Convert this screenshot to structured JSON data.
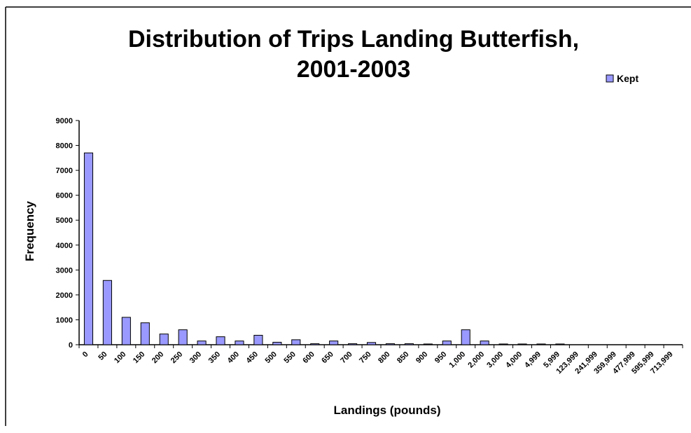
{
  "chart_data": {
    "type": "bar",
    "title_line1": "Distribution of Trips Landing Butterfish,",
    "title_line2": "2001-2003",
    "xlabel": "Landings (pounds)",
    "ylabel": "Frequency",
    "ylim": [
      0,
      9000
    ],
    "yticks": [
      "0",
      "1000",
      "2000",
      "3000",
      "4000",
      "5000",
      "6000",
      "7000",
      "8000",
      "9000"
    ],
    "legend_position": "top-right",
    "grid": false,
    "categories": [
      "0",
      "50",
      "100",
      "150",
      "200",
      "250",
      "300",
      "350",
      "400",
      "450",
      "500",
      "550",
      "600",
      "650",
      "700",
      "750",
      "800",
      "850",
      "900",
      "950",
      "1,000",
      "2,000",
      "3,000",
      "4,000",
      "4,999",
      "5,999",
      "123,999",
      "241,999",
      "359,999",
      "477,999",
      "595,999",
      "713,999"
    ],
    "series": [
      {
        "name": "Kept",
        "color": "#9999ff",
        "values": [
          7700,
          2580,
          1100,
          880,
          430,
          600,
          150,
          320,
          150,
          380,
          100,
          200,
          40,
          150,
          40,
          90,
          40,
          40,
          30,
          150,
          600,
          150,
          30,
          30,
          30,
          30,
          0,
          0,
          0,
          0,
          0,
          0
        ]
      }
    ]
  }
}
